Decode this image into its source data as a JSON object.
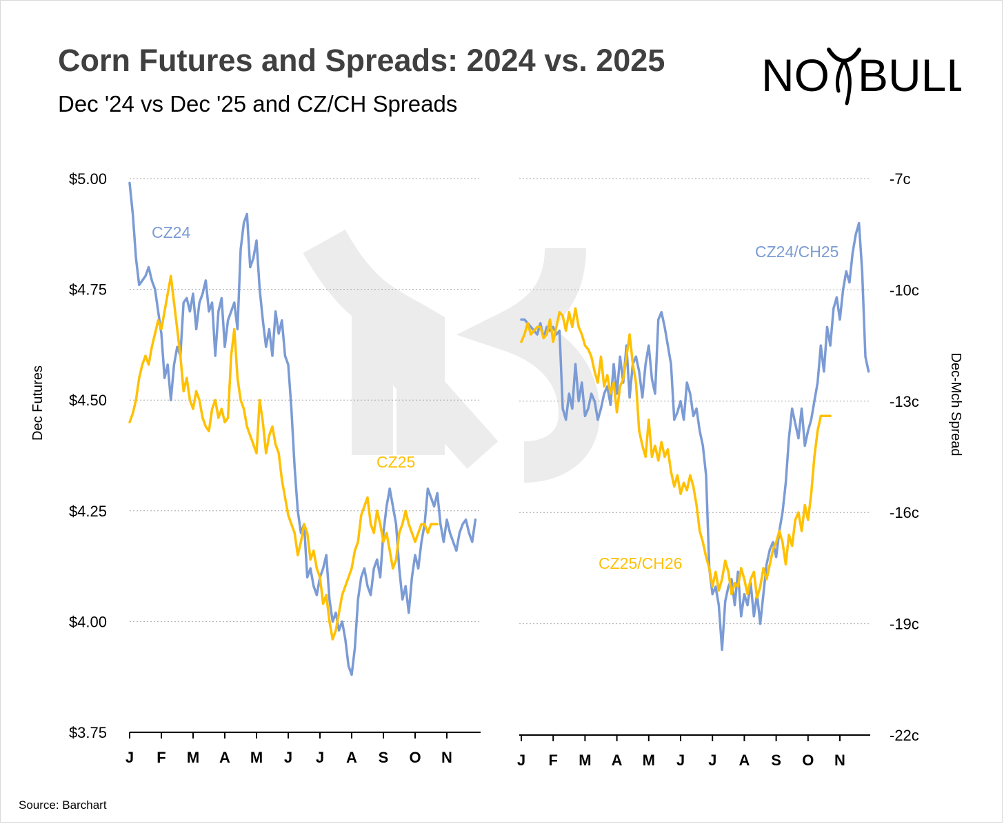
{
  "title": "Corn Futures and Spreads: 2024 vs. 2025",
  "subtitle": "Dec '24 vs Dec '25 and CZ/CH Spreads",
  "logo": {
    "text_left": "NO",
    "text_right": "BULL",
    "icon": "bull-horns-logo"
  },
  "source": "Source: Barchart",
  "colors": {
    "cz24": "#7b9bd5",
    "cz25": "#ffc000",
    "grid": "#a6a6a6"
  },
  "chart_data": [
    {
      "type": "line",
      "title": "",
      "ylabel": "Dec Futures",
      "xlabel": "",
      "ylim": [
        3.75,
        5.0
      ],
      "yticks": [
        5.0,
        4.75,
        4.5,
        4.25,
        4.0,
        3.75
      ],
      "ytick_labels": [
        "$5.00",
        "$4.75",
        "$4.50",
        "$4.25",
        "$4.00",
        "$3.75"
      ],
      "xticks": [
        "J",
        "F",
        "M",
        "A",
        "M",
        "J",
        "J",
        "A",
        "S",
        "O",
        "N"
      ],
      "series": [
        {
          "name": "CZ24",
          "color": "#7b9bd5",
          "x": [
            0.0,
            0.1,
            0.2,
            0.3,
            0.4,
            0.5,
            0.6,
            0.7,
            0.8,
            0.9,
            1.0,
            1.1,
            1.2,
            1.3,
            1.4,
            1.5,
            1.6,
            1.7,
            1.8,
            1.9,
            2.0,
            2.1,
            2.2,
            2.3,
            2.4,
            2.5,
            2.6,
            2.7,
            2.8,
            2.9,
            3.0,
            3.1,
            3.2,
            3.3,
            3.4,
            3.5,
            3.6,
            3.7,
            3.8,
            3.9,
            4.0,
            4.1,
            4.2,
            4.3,
            4.4,
            4.5,
            4.6,
            4.7,
            4.8,
            4.9,
            5.0,
            5.1,
            5.2,
            5.3,
            5.4,
            5.5,
            5.6,
            5.7,
            5.8,
            5.9,
            6.0,
            6.1,
            6.2,
            6.3,
            6.4,
            6.5,
            6.6,
            6.7,
            6.8,
            6.9,
            7.0,
            7.1,
            7.2,
            7.3,
            7.4,
            7.5,
            7.6,
            7.7,
            7.8,
            7.9,
            8.0,
            8.1,
            8.2,
            8.3,
            8.4,
            8.5,
            8.6,
            8.7,
            8.8,
            8.9,
            9.0,
            9.1,
            9.2,
            9.3,
            9.4,
            9.5,
            9.6,
            9.7,
            9.8,
            9.9,
            10.0,
            10.1,
            10.2,
            10.3,
            10.4,
            10.5,
            10.6,
            10.7,
            10.8,
            10.9
          ],
          "values": [
            4.99,
            4.92,
            4.82,
            4.76,
            4.77,
            4.78,
            4.8,
            4.77,
            4.75,
            4.7,
            4.65,
            4.55,
            4.58,
            4.5,
            4.58,
            4.62,
            4.6,
            4.72,
            4.73,
            4.7,
            4.74,
            4.66,
            4.72,
            4.74,
            4.77,
            4.7,
            4.72,
            4.6,
            4.7,
            4.73,
            4.62,
            4.68,
            4.7,
            4.72,
            4.66,
            4.84,
            4.9,
            4.92,
            4.8,
            4.82,
            4.86,
            4.75,
            4.68,
            4.62,
            4.66,
            4.6,
            4.7,
            4.65,
            4.68,
            4.6,
            4.58,
            4.48,
            4.35,
            4.25,
            4.2,
            4.22,
            4.1,
            4.12,
            4.08,
            4.06,
            4.1,
            4.12,
            4.15,
            4.05,
            4.0,
            4.02,
            3.98,
            4.0,
            3.96,
            3.9,
            3.88,
            3.94,
            4.05,
            4.1,
            4.12,
            4.08,
            4.06,
            4.12,
            4.14,
            4.1,
            4.2,
            4.26,
            4.3,
            4.26,
            4.22,
            4.12,
            4.05,
            4.08,
            4.02,
            4.1,
            4.15,
            4.12,
            4.18,
            4.22,
            4.3,
            4.28,
            4.26,
            4.29,
            4.22,
            4.18,
            4.23,
            4.2,
            4.18,
            4.16,
            4.2,
            4.22,
            4.23,
            4.2,
            4.18,
            4.23
          ]
        },
        {
          "name": "CZ25",
          "color": "#ffc000",
          "x": [
            0.0,
            0.1,
            0.2,
            0.3,
            0.4,
            0.5,
            0.6,
            0.7,
            0.8,
            0.9,
            1.0,
            1.1,
            1.2,
            1.3,
            1.4,
            1.5,
            1.6,
            1.7,
            1.8,
            1.9,
            2.0,
            2.1,
            2.2,
            2.3,
            2.4,
            2.5,
            2.6,
            2.7,
            2.8,
            2.9,
            3.0,
            3.1,
            3.2,
            3.3,
            3.4,
            3.5,
            3.6,
            3.7,
            3.8,
            3.9,
            4.0,
            4.1,
            4.2,
            4.3,
            4.4,
            4.5,
            4.6,
            4.7,
            4.8,
            4.9,
            5.0,
            5.1,
            5.2,
            5.3,
            5.4,
            5.5,
            5.6,
            5.7,
            5.8,
            5.9,
            6.0,
            6.1,
            6.2,
            6.3,
            6.4,
            6.5,
            6.6,
            6.7,
            6.8,
            6.9,
            7.0,
            7.1,
            7.2,
            7.3,
            7.4,
            7.5,
            7.6,
            7.7,
            7.8,
            7.9,
            8.0,
            8.1,
            8.2,
            8.3,
            8.4,
            8.5,
            8.6,
            8.7,
            8.8,
            8.9,
            9.0,
            9.1,
            9.2,
            9.3,
            9.4,
            9.5,
            9.6,
            9.7
          ],
          "values": [
            4.45,
            4.47,
            4.5,
            4.55,
            4.58,
            4.6,
            4.58,
            4.62,
            4.65,
            4.68,
            4.66,
            4.7,
            4.74,
            4.78,
            4.72,
            4.66,
            4.6,
            4.52,
            4.55,
            4.5,
            4.48,
            4.52,
            4.5,
            4.46,
            4.44,
            4.43,
            4.48,
            4.5,
            4.46,
            4.48,
            4.45,
            4.46,
            4.6,
            4.66,
            4.55,
            4.5,
            4.48,
            4.44,
            4.42,
            4.4,
            4.38,
            4.5,
            4.45,
            4.38,
            4.42,
            4.44,
            4.4,
            4.38,
            4.32,
            4.28,
            4.24,
            4.22,
            4.2,
            4.15,
            4.18,
            4.22,
            4.2,
            4.14,
            4.16,
            4.12,
            4.1,
            4.04,
            4.06,
            4.0,
            3.96,
            3.98,
            4.02,
            4.06,
            4.08,
            4.1,
            4.12,
            4.16,
            4.18,
            4.24,
            4.26,
            4.28,
            4.22,
            4.2,
            4.25,
            4.22,
            4.18,
            4.2,
            4.16,
            4.12,
            4.14,
            4.2,
            4.22,
            4.25,
            4.22,
            4.2,
            4.18,
            4.2,
            4.22,
            4.22,
            4.2,
            4.22,
            4.22,
            4.22
          ]
        }
      ]
    },
    {
      "type": "line",
      "title": "",
      "ylabel": "Dec-Mch Spread",
      "xlabel": "",
      "ylim": [
        -22,
        -7
      ],
      "yticks": [
        -7,
        -10,
        -13,
        -16,
        -19,
        -22
      ],
      "ytick_labels": [
        "-7c",
        "-10c",
        "-13c",
        "-16c",
        "-19c",
        "-22c"
      ],
      "xticks": [
        "J",
        "F",
        "M",
        "A",
        "M",
        "J",
        "J",
        "A",
        "S",
        "O",
        "N"
      ],
      "series": [
        {
          "name": "CZ24/CH25",
          "color": "#7b9bd5",
          "x": [
            0.0,
            0.1,
            0.2,
            0.3,
            0.4,
            0.5,
            0.6,
            0.7,
            0.8,
            0.9,
            1.0,
            1.1,
            1.2,
            1.3,
            1.4,
            1.5,
            1.6,
            1.7,
            1.8,
            1.9,
            2.0,
            2.1,
            2.2,
            2.3,
            2.4,
            2.5,
            2.6,
            2.7,
            2.8,
            2.9,
            3.0,
            3.1,
            3.2,
            3.3,
            3.4,
            3.5,
            3.6,
            3.7,
            3.8,
            3.9,
            4.0,
            4.1,
            4.2,
            4.3,
            4.4,
            4.5,
            4.6,
            4.7,
            4.8,
            4.9,
            5.0,
            5.1,
            5.2,
            5.3,
            5.4,
            5.5,
            5.6,
            5.7,
            5.8,
            5.9,
            6.0,
            6.1,
            6.2,
            6.3,
            6.4,
            6.5,
            6.6,
            6.7,
            6.8,
            6.9,
            7.0,
            7.1,
            7.2,
            7.3,
            7.4,
            7.5,
            7.6,
            7.7,
            7.8,
            7.9,
            8.0,
            8.1,
            8.2,
            8.3,
            8.4,
            8.5,
            8.6,
            8.7,
            8.8,
            8.9,
            9.0,
            9.1,
            9.2,
            9.3,
            9.4,
            9.5,
            9.6,
            9.7,
            9.8,
            9.9,
            10.0,
            10.1,
            10.2,
            10.3,
            10.4,
            10.5,
            10.6,
            10.7,
            10.8,
            10.9
          ],
          "values": [
            -10.8,
            -10.8,
            -10.9,
            -11.0,
            -11.1,
            -11.2,
            -10.9,
            -11.3,
            -11.0,
            -11.1,
            -11.0,
            -11.2,
            -11.1,
            -13.2,
            -13.5,
            -12.8,
            -13.2,
            -12.0,
            -13.0,
            -12.5,
            -13.4,
            -13.2,
            -12.8,
            -13.0,
            -13.5,
            -13.2,
            -12.8,
            -12.6,
            -13.1,
            -12.0,
            -12.8,
            -11.8,
            -12.5,
            -11.5,
            -12.9,
            -12.0,
            -11.8,
            -12.2,
            -12.9,
            -12.0,
            -11.5,
            -12.4,
            -12.8,
            -10.8,
            -10.6,
            -11.0,
            -11.5,
            -12.0,
            -13.5,
            -13.3,
            -13.0,
            -13.5,
            -12.5,
            -12.8,
            -13.4,
            -13.2,
            -13.8,
            -14.2,
            -15.0,
            -17.5,
            -18.2,
            -18.0,
            -18.5,
            -19.7,
            -18.4,
            -18.0,
            -17.8,
            -18.5,
            -17.6,
            -18.8,
            -18.2,
            -18.5,
            -17.9,
            -18.8,
            -18.2,
            -19.0,
            -18.2,
            -17.4,
            -17.0,
            -16.8,
            -17.2,
            -16.5,
            -16.0,
            -15.2,
            -14.0,
            -13.2,
            -13.6,
            -14.0,
            -13.2,
            -14.2,
            -13.8,
            -13.5,
            -13.0,
            -12.5,
            -11.5,
            -12.2,
            -11.0,
            -11.5,
            -10.5,
            -10.2,
            -10.8,
            -10.0,
            -9.5,
            -9.8,
            -9.0,
            -8.5,
            -8.2,
            -9.5,
            -11.8,
            -12.2
          ]
        },
        {
          "name": "CZ25/CH26",
          "color": "#ffc000",
          "x": [
            0.0,
            0.1,
            0.2,
            0.3,
            0.4,
            0.5,
            0.6,
            0.7,
            0.8,
            0.9,
            1.0,
            1.1,
            1.2,
            1.3,
            1.4,
            1.5,
            1.6,
            1.7,
            1.8,
            1.9,
            2.0,
            2.1,
            2.2,
            2.3,
            2.4,
            2.5,
            2.6,
            2.7,
            2.8,
            2.9,
            3.0,
            3.1,
            3.2,
            3.3,
            3.4,
            3.5,
            3.6,
            3.7,
            3.8,
            3.9,
            4.0,
            4.1,
            4.2,
            4.3,
            4.4,
            4.5,
            4.6,
            4.7,
            4.8,
            4.9,
            5.0,
            5.1,
            5.2,
            5.3,
            5.4,
            5.5,
            5.6,
            5.7,
            5.8,
            5.9,
            6.0,
            6.1,
            6.2,
            6.3,
            6.4,
            6.5,
            6.6,
            6.7,
            6.8,
            6.9,
            7.0,
            7.1,
            7.2,
            7.3,
            7.4,
            7.5,
            7.6,
            7.7,
            7.8,
            7.9,
            8.0,
            8.1,
            8.2,
            8.3,
            8.4,
            8.5,
            8.6,
            8.7,
            8.8,
            8.9,
            9.0,
            9.1,
            9.2,
            9.3,
            9.4,
            9.5,
            9.6,
            9.7
          ],
          "values": [
            -11.4,
            -11.2,
            -10.9,
            -11.2,
            -11.1,
            -11.0,
            -11.0,
            -11.3,
            -11.2,
            -10.8,
            -11.4,
            -11.0,
            -10.6,
            -10.7,
            -11.1,
            -10.6,
            -11.0,
            -10.5,
            -11.0,
            -11.2,
            -11.5,
            -11.6,
            -11.8,
            -12.2,
            -12.5,
            -11.8,
            -12.6,
            -12.3,
            -12.8,
            -12.5,
            -13.3,
            -12.6,
            -12.4,
            -11.8,
            -11.2,
            -12.0,
            -12.5,
            -13.8,
            -14.2,
            -14.5,
            -13.5,
            -14.5,
            -14.2,
            -14.6,
            -14.1,
            -14.5,
            -14.3,
            -14.9,
            -15.3,
            -15.0,
            -15.5,
            -15.2,
            -15.4,
            -15.0,
            -15.3,
            -15.8,
            -16.5,
            -16.8,
            -17.2,
            -17.5,
            -18.0,
            -17.6,
            -18.1,
            -17.8,
            -17.3,
            -17.6,
            -18.2,
            -17.9,
            -18.0,
            -17.5,
            -17.8,
            -18.2,
            -17.8,
            -17.6,
            -18.3,
            -18.0,
            -17.5,
            -17.8,
            -17.4,
            -17.0,
            -16.8,
            -16.5,
            -16.8,
            -17.4,
            -16.6,
            -16.9,
            -16.2,
            -16.0,
            -16.5,
            -15.8,
            -16.2,
            -15.5,
            -14.5,
            -13.8,
            -13.4,
            -13.4,
            -13.4,
            -13.4
          ]
        }
      ]
    }
  ]
}
